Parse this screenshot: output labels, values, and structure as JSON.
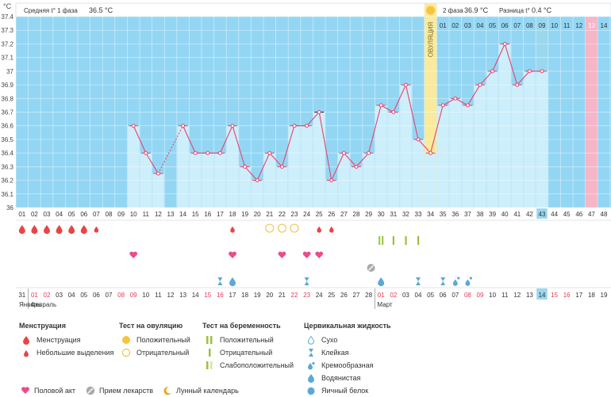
{
  "header": {
    "unit": "°C",
    "phase1_label": "Средняя t° 1 фаза",
    "phase1_value": "36.5 °C",
    "phase2_label": "2 фаза",
    "phase2_value": "36.9 °C",
    "diff_label": "Разница t°",
    "diff_value": "0.4 °C",
    "ovulation_label": "ОВУЛЯЦИЯ"
  },
  "top_dates": [
    "01",
    "02",
    "03",
    "04",
    "05",
    "06",
    "07",
    "08",
    "09",
    "10",
    "11",
    "12",
    "13",
    "14"
  ],
  "bottom_dates": [
    "31",
    "01",
    "02",
    "03",
    "04",
    "05",
    "06",
    "07",
    "08",
    "09",
    "10",
    "11",
    "12",
    "13",
    "14",
    "15",
    "16",
    "17",
    "18",
    "19",
    "20",
    "21",
    "22",
    "23",
    "24",
    "25",
    "26",
    "27",
    "28",
    "01",
    "02",
    "03",
    "04",
    "05",
    "06",
    "07",
    "08",
    "09",
    "10",
    "11",
    "12",
    "13",
    "14",
    "15",
    "16",
    "17",
    "18",
    "19"
  ],
  "bottom_red": [
    2,
    3,
    9,
    10,
    16,
    17,
    23,
    24,
    30,
    31,
    37,
    38,
    44,
    45
  ],
  "months": {
    "jan": "Январь",
    "feb": "Февраль",
    "mar": "Март"
  },
  "chart_data": {
    "type": "line",
    "x": [
      1,
      2,
      3,
      4,
      5,
      6,
      7,
      8,
      9,
      10,
      11,
      12,
      13,
      14,
      15,
      16,
      17,
      18,
      19,
      20,
      21,
      22,
      23,
      24,
      25,
      26,
      27,
      28,
      29,
      30,
      31,
      32,
      33,
      34,
      35,
      36,
      37,
      38,
      39,
      40,
      41,
      42,
      43,
      44,
      45,
      46,
      47,
      48
    ],
    "y": [
      null,
      null,
      null,
      null,
      null,
      null,
      null,
      null,
      null,
      36.6,
      36.4,
      36.25,
      null,
      36.6,
      36.4,
      36.4,
      36.4,
      36.6,
      36.3,
      36.2,
      36.4,
      36.3,
      36.6,
      36.6,
      36.7,
      36.2,
      36.4,
      36.3,
      36.4,
      36.75,
      36.7,
      36.9,
      36.5,
      36.4,
      36.75,
      36.8,
      36.75,
      36.9,
      37.0,
      37.2,
      36.9,
      37.0,
      37.0,
      null,
      null,
      null,
      null,
      null
    ],
    "ylim": [
      36.0,
      37.4
    ],
    "yticks": [
      "36",
      "36.1",
      "36.2",
      "36.3",
      "36.4",
      "36.5",
      "36.6",
      "36.7",
      "36.8",
      "36.9",
      "37",
      "37.1",
      "37.2",
      "37.3",
      "37.4"
    ],
    "ovulation_day": 34,
    "highlight_day": 43,
    "pink_day": 47,
    "legend_placement": "bottom"
  },
  "markers": {
    "menstruation": [
      1,
      2,
      3,
      4,
      5,
      6
    ],
    "light_bleeding": [
      7,
      18,
      25,
      26
    ],
    "ovulation_negative": [
      21,
      22,
      23
    ],
    "preg_positive": [
      30
    ],
    "preg_negative": [
      31,
      32,
      33
    ],
    "intercourse": [
      10,
      18,
      22,
      24,
      25
    ],
    "medication": [
      29
    ],
    "sticky": [
      17,
      24,
      33,
      35
    ],
    "watery": [
      18,
      30
    ],
    "creamy": [
      36,
      37
    ],
    "moon": [
      9
    ]
  },
  "legend": {
    "menstruation": {
      "title": "Менструация",
      "items": [
        "Менструация",
        "Небольшие выделения"
      ]
    },
    "ovulation_test": {
      "title": "Тест на овуляцию",
      "items": [
        "Положительный",
        "Отрицательный"
      ]
    },
    "pregnancy_test": {
      "title": "Тест на беременность",
      "items": [
        "Положительный",
        "Отрицательный",
        "Слабоположительный"
      ]
    },
    "cervical": {
      "title": "Цервикальная жидкость",
      "items": [
        "Сухо",
        "Клейкая",
        "Кремообразная",
        "Водянистая",
        "Яичный белок"
      ]
    },
    "bottom": [
      "Половой акт",
      "Прием лекарств",
      "Лунный календарь"
    ]
  },
  "colors": {
    "chart_bg": "#93d6f4",
    "bar": "#cdeefb",
    "line": "#e8436b",
    "ovulation": "#f9ea9c",
    "highlight": "#9ad8ef",
    "pink": "#f7b5c8",
    "red_text": "#e23b5a",
    "heart": "#ec4b8d",
    "drop_blue": "#5aa9d6",
    "preg_green": "#9ac23c"
  }
}
